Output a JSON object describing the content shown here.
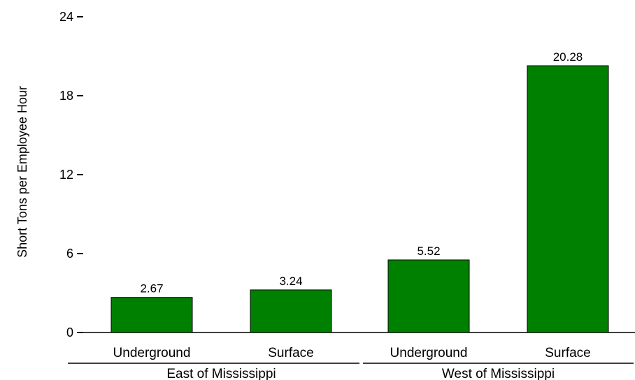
{
  "chart_data": {
    "type": "bar",
    "ylabel": "Short Tons per Employee Hour",
    "ylim": [
      0,
      24
    ],
    "yticks": [
      0,
      6,
      12,
      18,
      24
    ],
    "grid": false,
    "legend": "none",
    "bar_color": "#008000",
    "groups": [
      {
        "label": "East of Mississippi",
        "bars": [
          {
            "category": "Underground",
            "value": 2.67,
            "value_label": "2.67"
          },
          {
            "category": "Surface",
            "value": 3.24,
            "value_label": "3.24"
          }
        ]
      },
      {
        "label": "West of Mississippi",
        "bars": [
          {
            "category": "Underground",
            "value": 5.52,
            "value_label": "5.52"
          },
          {
            "category": "Surface",
            "value": 20.28,
            "value_label": "20.28"
          }
        ]
      }
    ]
  }
}
